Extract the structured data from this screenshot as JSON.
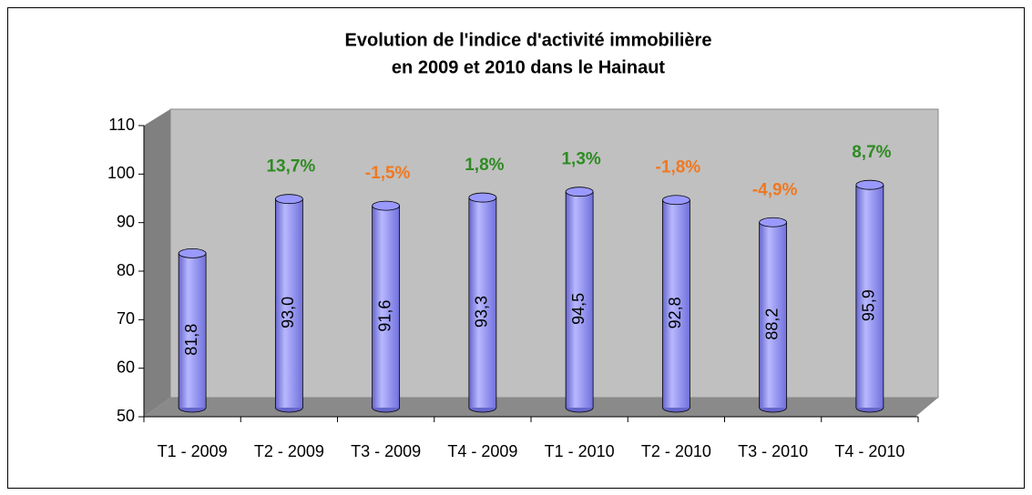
{
  "chart_data": {
    "type": "cylinder-bar",
    "title": [
      "Evolution de l'indice d'activité immobilière",
      "en 2009 et 2010 dans le Hainaut"
    ],
    "categories": [
      "T1 - 2009",
      "T2 - 2009",
      "T3 - 2009",
      "T4 - 2009",
      "T1 - 2010",
      "T2 - 2010",
      "T3 - 2010",
      "T4 - 2010"
    ],
    "values": [
      81.8,
      93.0,
      91.6,
      93.3,
      94.5,
      92.8,
      88.2,
      95.9
    ],
    "value_labels": [
      "81,8",
      "93,0",
      "91,6",
      "93,3",
      "94,5",
      "92,8",
      "88,2",
      "95,9"
    ],
    "changes": [
      13.7,
      -1.5,
      1.8,
      1.3,
      -1.8,
      -4.9,
      8.7
    ],
    "change_labels": [
      "13,7%",
      "-1,5%",
      "1,8%",
      "1,3%",
      "-1,8%",
      "-4,9%",
      "8,7%"
    ],
    "positive_color": "#2e8b22",
    "negative_color": "#f07820",
    "color": "#9999ff",
    "ylim": [
      50,
      110
    ],
    "yticks": [
      50,
      60,
      70,
      80,
      90,
      100,
      110
    ]
  }
}
